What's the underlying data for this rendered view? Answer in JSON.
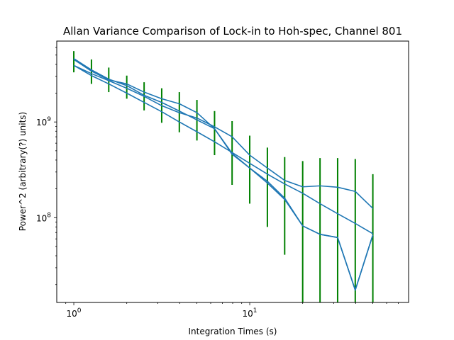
{
  "chart_data": {
    "type": "line",
    "title": "Allan Variance Comparison of Lock-in to Hoh-spec, Channel 801",
    "xlabel": "Integration Times (s)",
    "ylabel": "Power^2 (arbitrary(?) units)",
    "xscale": "log",
    "yscale": "log",
    "xlim": [
      0.8,
      80
    ],
    "ylim": [
      13000000,
      7000000000
    ],
    "xticks": [
      {
        "value": 1,
        "base": "10",
        "exp": "0"
      },
      {
        "value": 10,
        "base": "10",
        "exp": "1"
      }
    ],
    "yticks": [
      {
        "value": 100000000,
        "base": "10",
        "exp": "8"
      },
      {
        "value": 1000000000,
        "base": "10",
        "exp": "9"
      }
    ],
    "grid": false,
    "legend": "none",
    "colors": {
      "line": "#1f77b4",
      "error": "#008000"
    },
    "x": [
      1,
      1.26,
      1.58,
      2,
      2.51,
      3.16,
      3.98,
      5.01,
      6.31,
      7.94,
      10,
      12.6,
      15.8,
      20,
      25.1,
      31.6,
      39.8,
      50.1,
      63.1
    ],
    "series": [
      {
        "values": [
          4500000000,
          3400000000,
          2750000000,
          2500000000,
          2050000000,
          1750000000,
          1550000000,
          1250000000,
          850000000,
          460000000,
          330000000,
          230000000,
          155000000,
          82000000,
          67000000,
          62000000,
          17500000,
          66000000,
          null
        ]
      },
      {
        "values": [
          3900000000,
          3200000000,
          2700000000,
          2250000000,
          1850000000,
          1480000000,
          1250000000,
          1100000000,
          890000000,
          700000000,
          450000000,
          330000000,
          245000000,
          210000000,
          215000000,
          208000000,
          188000000,
          125000000,
          null
        ]
      },
      {
        "values": [
          3900000000,
          3050000000,
          2500000000,
          2000000000,
          1600000000,
          1280000000,
          1000000000,
          790000000,
          620000000,
          480000000,
          370000000,
          285000000,
          225000000,
          180000000,
          140000000,
          110000000,
          87000000,
          68000000,
          null
        ]
      },
      {
        "values": [
          4600000000,
          3500000000,
          2800000000,
          2400000000,
          1900000000,
          1600000000,
          1300000000,
          1050000000,
          850000000,
          470000000,
          330000000,
          240000000,
          160000000,
          82000000,
          67000000,
          62000000,
          17500000,
          66000000,
          null
        ]
      }
    ],
    "errorbars": {
      "x": [
        1,
        1.26,
        1.58,
        2,
        2.51,
        3.16,
        3.98,
        5.01,
        6.31,
        7.94,
        10,
        12.6,
        15.8,
        20,
        25.1,
        31.6,
        39.8,
        50.1,
        63.1
      ],
      "low": [
        3300000000,
        2500000000,
        2050000000,
        1750000000,
        1320000000,
        980000000,
        780000000,
        640000000,
        450000000,
        220000000,
        140000000,
        80000000,
        41000000,
        13000000,
        13000000,
        13000000,
        13000000,
        13000000,
        null
      ],
      "high": [
        5500000000,
        4500000000,
        3700000000,
        3050000000,
        2600000000,
        2250000000,
        2050000000,
        1700000000,
        1300000000,
        1020000000,
        720000000,
        540000000,
        430000000,
        390000000,
        420000000,
        420000000,
        410000000,
        285000000,
        null
      ]
    }
  }
}
